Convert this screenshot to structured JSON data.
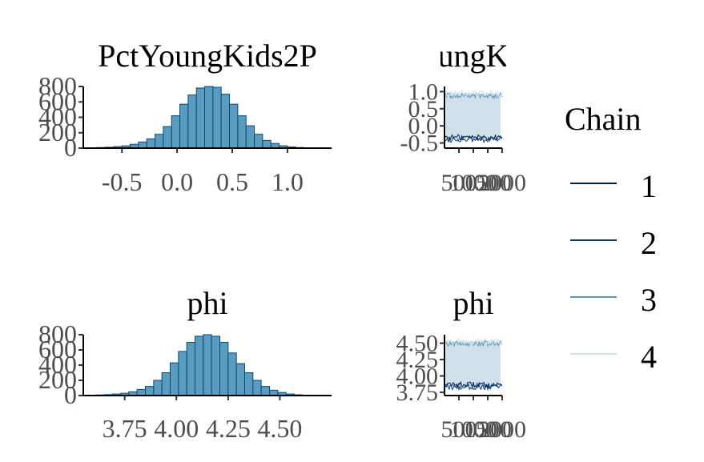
{
  "chart_data": [
    {
      "type": "bar",
      "panel": "histogram",
      "title": "PctYoungKids2P",
      "x_tick_labels": [
        "-0.5",
        "0.0",
        "0.5",
        "1.0"
      ],
      "x_ticks": [
        -0.5,
        0.0,
        0.5,
        1.0
      ],
      "xlim": [
        -0.85,
        1.4
      ],
      "y_tick_labels": [
        "0",
        "200",
        "400",
        "600",
        "800"
      ],
      "y_ticks": [
        0,
        200,
        400,
        600,
        800
      ],
      "ylim": [
        0,
        800
      ],
      "bin_start": -0.8,
      "bin_width": 0.075,
      "counts": [
        5,
        8,
        12,
        20,
        30,
        50,
        80,
        120,
        180,
        280,
        420,
        570,
        690,
        780,
        800,
        790,
        700,
        570,
        420,
        290,
        180,
        100,
        60,
        30,
        15,
        8,
        4,
        2,
        1
      ],
      "fill_color": "#5b9bbd",
      "edge_color": "#0b4a78"
    },
    {
      "type": "line",
      "panel": "trace",
      "title": "ungK",
      "x_tick_labels": [
        "500",
        "1000",
        "1500",
        "2000"
      ],
      "x_ticks": [
        500,
        1000,
        1500,
        2000
      ],
      "xlim": [
        0,
        2000
      ],
      "y_tick_labels": [
        "-0.5",
        "0.0",
        "0.5",
        "1.0"
      ],
      "y_ticks": [
        -0.5,
        0.0,
        0.5,
        1.0
      ],
      "ylim": [
        -0.65,
        1.15
      ],
      "band_color": "#d1e1ec",
      "band_range": [
        -0.4,
        0.95
      ]
    },
    {
      "type": "bar",
      "panel": "histogram",
      "title": "phi",
      "x_tick_labels": [
        "3.75",
        "4.00",
        "4.25",
        "4.50"
      ],
      "x_ticks": [
        3.75,
        4.0,
        4.25,
        4.5
      ],
      "xlim": [
        3.55,
        4.75
      ],
      "y_tick_labels": [
        "0",
        "200",
        "400",
        "600",
        "800"
      ],
      "y_ticks": [
        0,
        200,
        400,
        600,
        800
      ],
      "ylim": [
        0,
        800
      ],
      "bin_start": 3.57,
      "bin_width": 0.04,
      "counts": [
        4,
        8,
        12,
        20,
        30,
        50,
        80,
        120,
        200,
        300,
        430,
        580,
        700,
        780,
        800,
        780,
        700,
        560,
        420,
        300,
        200,
        120,
        70,
        40,
        20,
        10,
        5,
        2
      ],
      "fill_color": "#5b9bbd",
      "edge_color": "#0b4a78"
    },
    {
      "type": "line",
      "panel": "trace",
      "title": "phi",
      "x_tick_labels": [
        "500",
        "1000",
        "1500",
        "2000"
      ],
      "x_ticks": [
        500,
        1000,
        1500,
        2000
      ],
      "xlim": [
        0,
        2000
      ],
      "y_tick_labels": [
        "3.75",
        "4.00",
        "4.25",
        "4.50"
      ],
      "y_ticks": [
        3.75,
        4.0,
        4.25,
        4.5
      ],
      "ylim": [
        3.7,
        4.63
      ],
      "band_color": "#d1e1ec",
      "band_range": [
        3.83,
        4.53
      ]
    }
  ],
  "legend": {
    "title": "Chain",
    "items": [
      {
        "label": "1",
        "color": "#011f4b"
      },
      {
        "label": "2",
        "color": "#03396c"
      },
      {
        "label": "3",
        "color": "#6497b1"
      },
      {
        "label": "4",
        "color": "#d1e1ec"
      }
    ]
  }
}
